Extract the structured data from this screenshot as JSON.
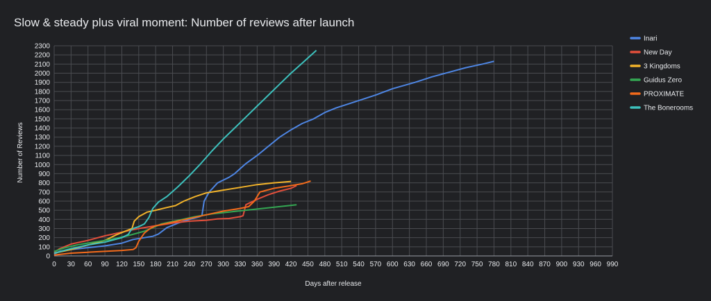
{
  "chart_data": {
    "type": "line",
    "title": "Slow & steady plus viral moment: Number of reviews after launch",
    "xlabel": "Days after release",
    "ylabel": "Number of Reviews",
    "xlim": [
      0,
      990
    ],
    "ylim": [
      0,
      2300
    ],
    "x_ticks": [
      0,
      30,
      60,
      90,
      120,
      150,
      180,
      210,
      240,
      270,
      300,
      330,
      360,
      390,
      420,
      450,
      480,
      510,
      540,
      570,
      600,
      630,
      660,
      690,
      720,
      750,
      780,
      810,
      840,
      870,
      900,
      930,
      960,
      990
    ],
    "y_ticks": [
      0,
      100,
      200,
      300,
      400,
      500,
      600,
      700,
      800,
      900,
      1000,
      1100,
      1200,
      1300,
      1400,
      1500,
      1600,
      1700,
      1800,
      1900,
      2000,
      2100,
      2200,
      2300
    ],
    "grid": true,
    "legend_position": "right",
    "series": [
      {
        "name": "Inari",
        "color": "#4e86e4",
        "points": [
          [
            0,
            20
          ],
          [
            10,
            50
          ],
          [
            30,
            70
          ],
          [
            60,
            90
          ],
          [
            90,
            110
          ],
          [
            120,
            140
          ],
          [
            140,
            180
          ],
          [
            160,
            200
          ],
          [
            175,
            215
          ],
          [
            185,
            240
          ],
          [
            200,
            310
          ],
          [
            220,
            360
          ],
          [
            240,
            400
          ],
          [
            258,
            430
          ],
          [
            262,
            440
          ],
          [
            266,
            600
          ],
          [
            275,
            700
          ],
          [
            290,
            800
          ],
          [
            310,
            860
          ],
          [
            320,
            900
          ],
          [
            340,
            1010
          ],
          [
            360,
            1100
          ],
          [
            380,
            1200
          ],
          [
            400,
            1300
          ],
          [
            420,
            1380
          ],
          [
            440,
            1450
          ],
          [
            460,
            1500
          ],
          [
            480,
            1570
          ],
          [
            500,
            1620
          ],
          [
            530,
            1680
          ],
          [
            570,
            1760
          ],
          [
            600,
            1830
          ],
          [
            640,
            1900
          ],
          [
            670,
            1960
          ],
          [
            700,
            2010
          ],
          [
            730,
            2060
          ],
          [
            760,
            2100
          ],
          [
            780,
            2130
          ]
        ]
      },
      {
        "name": "New Day",
        "color": "#e34f3b",
        "points": [
          [
            0,
            40
          ],
          [
            10,
            80
          ],
          [
            30,
            130
          ],
          [
            60,
            170
          ],
          [
            90,
            220
          ],
          [
            120,
            260
          ],
          [
            150,
            300
          ],
          [
            180,
            330
          ],
          [
            210,
            360
          ],
          [
            240,
            380
          ],
          [
            270,
            390
          ],
          [
            290,
            405
          ],
          [
            310,
            410
          ],
          [
            330,
            430
          ],
          [
            335,
            440
          ],
          [
            340,
            560
          ],
          [
            360,
            620
          ],
          [
            380,
            670
          ],
          [
            400,
            710
          ],
          [
            420,
            740
          ],
          [
            430,
            770
          ]
        ]
      },
      {
        "name": "3 Kingdoms",
        "color": "#f2b32a",
        "points": [
          [
            0,
            30
          ],
          [
            30,
            70
          ],
          [
            60,
            120
          ],
          [
            90,
            170
          ],
          [
            110,
            230
          ],
          [
            130,
            280
          ],
          [
            138,
            300
          ],
          [
            142,
            380
          ],
          [
            150,
            430
          ],
          [
            165,
            480
          ],
          [
            180,
            500
          ],
          [
            200,
            530
          ],
          [
            215,
            550
          ],
          [
            230,
            600
          ],
          [
            250,
            650
          ],
          [
            270,
            690
          ],
          [
            300,
            720
          ],
          [
            330,
            750
          ],
          [
            360,
            780
          ],
          [
            390,
            800
          ],
          [
            420,
            815
          ]
        ]
      },
      {
        "name": "Guidus Zero",
        "color": "#34a853",
        "points": [
          [
            0,
            50
          ],
          [
            20,
            90
          ],
          [
            40,
            120
          ],
          [
            70,
            150
          ],
          [
            100,
            180
          ],
          [
            130,
            220
          ],
          [
            160,
            270
          ],
          [
            190,
            350
          ],
          [
            220,
            390
          ],
          [
            250,
            430
          ],
          [
            280,
            460
          ],
          [
            310,
            480
          ],
          [
            340,
            500
          ],
          [
            370,
            520
          ],
          [
            400,
            540
          ],
          [
            430,
            560
          ]
        ]
      },
      {
        "name": "PROXIMATE",
        "color": "#f46b1b",
        "points": [
          [
            0,
            10
          ],
          [
            30,
            30
          ],
          [
            60,
            40
          ],
          [
            90,
            50
          ],
          [
            120,
            60
          ],
          [
            140,
            70
          ],
          [
            145,
            90
          ],
          [
            150,
            160
          ],
          [
            160,
            250
          ],
          [
            170,
            300
          ],
          [
            180,
            330
          ],
          [
            210,
            370
          ],
          [
            240,
            410
          ],
          [
            270,
            450
          ],
          [
            300,
            490
          ],
          [
            330,
            520
          ],
          [
            345,
            540
          ],
          [
            355,
            600
          ],
          [
            365,
            700
          ],
          [
            390,
            740
          ],
          [
            420,
            770
          ],
          [
            440,
            790
          ],
          [
            455,
            820
          ]
        ]
      },
      {
        "name": "The Bonerooms",
        "color": "#3dc1bd",
        "points": [
          [
            0,
            30
          ],
          [
            30,
            80
          ],
          [
            60,
            120
          ],
          [
            90,
            150
          ],
          [
            120,
            200
          ],
          [
            130,
            230
          ],
          [
            132,
            240
          ],
          [
            136,
            280
          ],
          [
            140,
            300
          ],
          [
            150,
            320
          ],
          [
            160,
            350
          ],
          [
            168,
            420
          ],
          [
            175,
            520
          ],
          [
            185,
            590
          ],
          [
            200,
            650
          ],
          [
            220,
            760
          ],
          [
            240,
            880
          ],
          [
            260,
            1010
          ],
          [
            280,
            1150
          ],
          [
            300,
            1280
          ],
          [
            320,
            1400
          ],
          [
            340,
            1520
          ],
          [
            360,
            1640
          ],
          [
            380,
            1760
          ],
          [
            400,
            1880
          ],
          [
            420,
            2000
          ],
          [
            440,
            2110
          ],
          [
            465,
            2250
          ]
        ]
      }
    ]
  }
}
